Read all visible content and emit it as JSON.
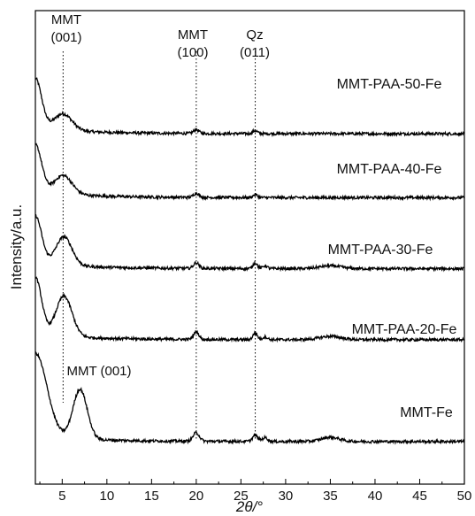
{
  "chart_data": {
    "type": "line",
    "xlabel": "2θ/°",
    "ylabel": "Intensity/a.u.",
    "xlim": [
      2,
      50
    ],
    "x_ticks": [
      "5",
      "10",
      "15",
      "20",
      "25",
      "30",
      "35",
      "40",
      "45",
      "50"
    ],
    "y_ticks_labeled": false,
    "grid": false,
    "series": [
      {
        "name": "MMT-PAA-50-Fe",
        "baseline": 0.74,
        "noise": 0.003,
        "peaks": [
          {
            "x": 2.0,
            "height": 0.105,
            "width": 0.7
          },
          {
            "x": 5.1,
            "height": 0.035,
            "width": 1.0
          },
          {
            "x": 20.0,
            "height": 0.008,
            "width": 0.3
          },
          {
            "x": 26.6,
            "height": 0.006,
            "width": 0.25
          }
        ]
      },
      {
        "name": "MMT-PAA-40-Fe",
        "baseline": 0.605,
        "noise": 0.003,
        "peaks": [
          {
            "x": 2.0,
            "height": 0.1,
            "width": 0.7
          },
          {
            "x": 5.1,
            "height": 0.04,
            "width": 1.0
          },
          {
            "x": 20.0,
            "height": 0.009,
            "width": 0.3
          },
          {
            "x": 26.6,
            "height": 0.006,
            "width": 0.25
          }
        ]
      },
      {
        "name": "MMT-PAA-30-Fe",
        "baseline": 0.455,
        "noise": 0.003,
        "peaks": [
          {
            "x": 2.0,
            "height": 0.1,
            "width": 0.7
          },
          {
            "x": 5.2,
            "height": 0.06,
            "width": 0.9
          },
          {
            "x": 20.0,
            "height": 0.012,
            "width": 0.3
          },
          {
            "x": 26.6,
            "height": 0.012,
            "width": 0.25
          },
          {
            "x": 27.7,
            "height": 0.006,
            "width": 0.25
          },
          {
            "x": 35.0,
            "height": 0.006,
            "width": 1.2
          }
        ]
      },
      {
        "name": "MMT-PAA-20-Fe",
        "baseline": 0.305,
        "noise": 0.003,
        "peaks": [
          {
            "x": 2.0,
            "height": 0.12,
            "width": 0.7
          },
          {
            "x": 5.2,
            "height": 0.085,
            "width": 0.9
          },
          {
            "x": 20.0,
            "height": 0.016,
            "width": 0.3
          },
          {
            "x": 26.6,
            "height": 0.014,
            "width": 0.25
          },
          {
            "x": 27.7,
            "height": 0.006,
            "width": 0.25
          },
          {
            "x": 35.0,
            "height": 0.007,
            "width": 1.2
          }
        ]
      },
      {
        "name": "MMT-Fe",
        "baseline": 0.09,
        "noise": 0.003,
        "peaks": [
          {
            "x": 2.0,
            "height": 0.175,
            "width": 1.3
          },
          {
            "x": 7.0,
            "height": 0.105,
            "width": 0.8
          },
          {
            "x": 20.0,
            "height": 0.018,
            "width": 0.35
          },
          {
            "x": 26.6,
            "height": 0.013,
            "width": 0.3
          },
          {
            "x": 27.7,
            "height": 0.008,
            "width": 0.3
          },
          {
            "x": 35.0,
            "height": 0.009,
            "width": 1.0
          }
        ]
      }
    ],
    "reference_lines": [
      {
        "x": 5.1,
        "label_top": "MMT",
        "label_bottom": "(001)"
      },
      {
        "x": 20.0,
        "label_top": "MMT",
        "label_bottom": "(100)"
      },
      {
        "x": 26.6,
        "label_top": "Qz",
        "label_bottom": "(011)"
      }
    ],
    "annotations": [
      {
        "text": "MMT (001)"
      }
    ]
  }
}
